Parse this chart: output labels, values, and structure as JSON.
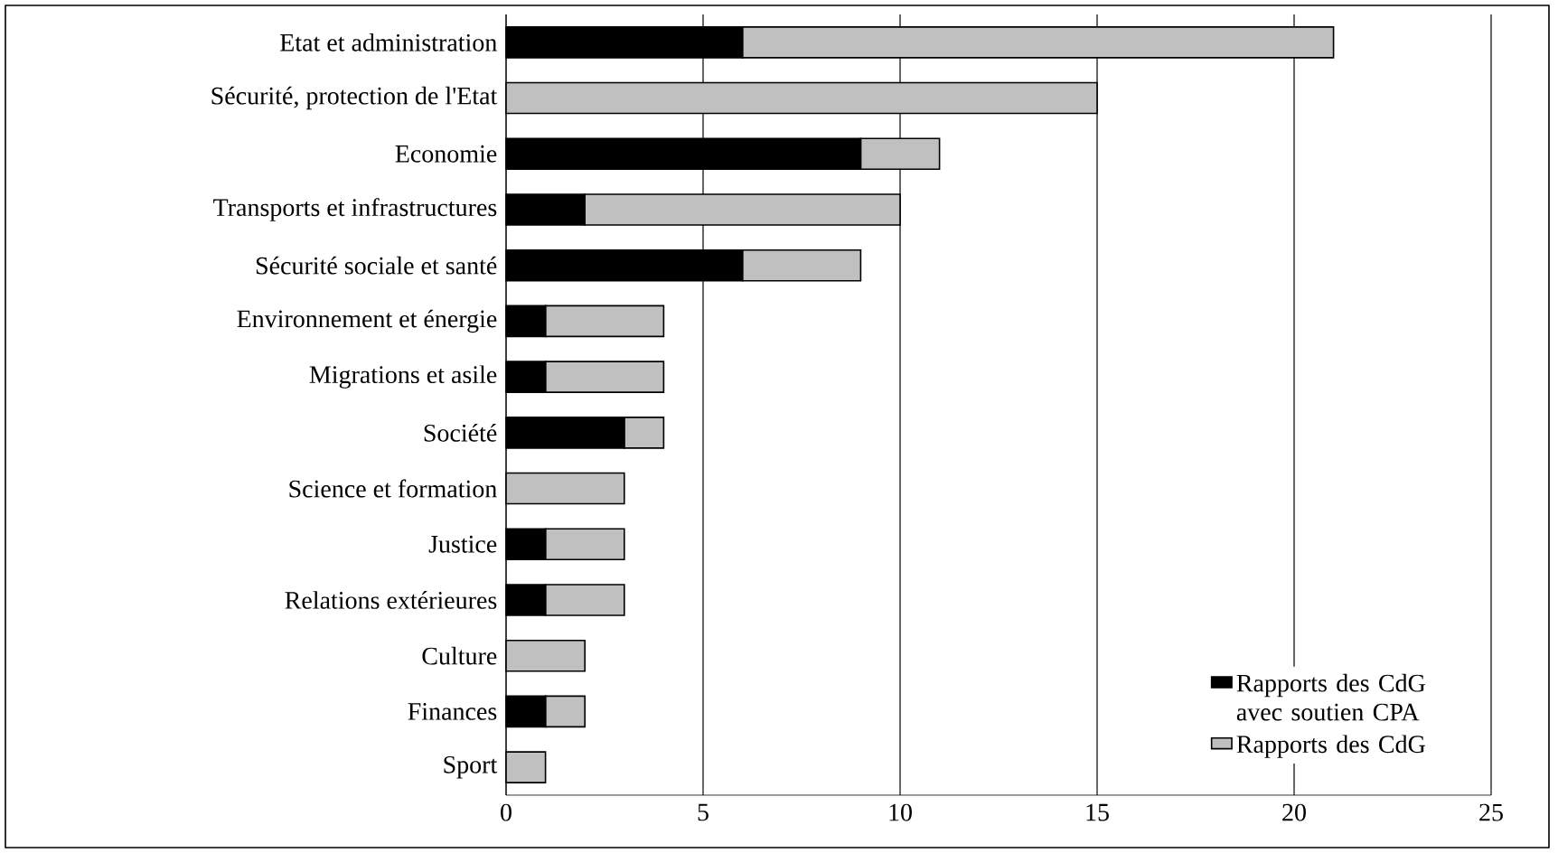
{
  "chart_data": {
    "type": "bar",
    "orientation": "horizontal",
    "stacked": true,
    "categories": [
      "Etat et administration",
      "Sécurité, protection de l'Etat",
      "Economie",
      "Transports et infrastructures",
      "Sécurité sociale et santé",
      "Environnement et énergie",
      "Migrations et asile",
      "Société",
      "Science et formation",
      "Justice",
      "Relations extérieures",
      "Culture",
      "Finances",
      "Sport"
    ],
    "series": [
      {
        "name": "Rapports des CdG avec soutien CPA",
        "color": "#000000",
        "values": [
          6,
          0,
          9,
          2,
          6,
          1,
          1,
          3,
          0,
          1,
          1,
          0,
          1,
          0
        ]
      },
      {
        "name": "Rapports des CdG",
        "color": "#c0c0c0",
        "values": [
          15,
          15,
          2,
          8,
          3,
          3,
          3,
          1,
          3,
          2,
          2,
          2,
          1,
          1
        ]
      }
    ],
    "xlim": [
      0,
      25
    ],
    "xticks": [
      0,
      5,
      10,
      15,
      20,
      25
    ],
    "grid": "x",
    "legend": "bottom right"
  }
}
